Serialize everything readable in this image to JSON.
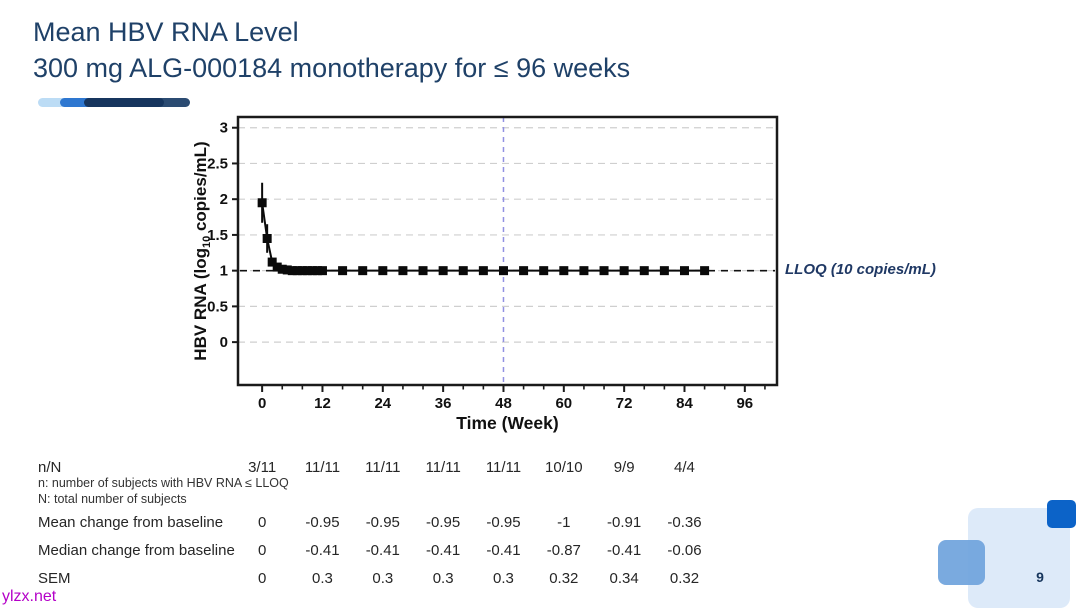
{
  "slide": {
    "title_line1": "Mean HBV RNA Level",
    "title_line2": "300 mg ALG-000184 monotherapy for ≤ 96 weeks",
    "page_number": "9"
  },
  "watermark": "ylzx.net",
  "colors": {
    "title_text": "#1f4168",
    "lloq_text": "#1f3864",
    "week48_line": "#9191e2",
    "gridline": "#cfcfcf",
    "series": "#0a0a0a",
    "accent_light": "#bcdcf5",
    "accent_mid": "#2e77d0",
    "accent_dark": "#16355e",
    "accent_tail": "#2b4b72",
    "decor_dark_square": "#0c63c8",
    "decor_mid_square": "#6fa3dc",
    "decor_light_square": "#ddeaf9"
  },
  "chart_data": {
    "type": "line",
    "title": "",
    "xlabel": "Time (Week)",
    "ylabel": "HBV RNA (log10 copies/mL)",
    "ylabel_parts": [
      "HBV  RNA  (log",
      "10",
      " copies/mL)"
    ],
    "xlim": [
      -4.8,
      102.4
    ],
    "ylim": [
      -0.6,
      3.15
    ],
    "x_major_ticks": [
      0,
      12,
      24,
      36,
      48,
      60,
      72,
      84,
      96
    ],
    "x_minor_tick_step": 4,
    "y_ticks": [
      0,
      0.5,
      1,
      1.5,
      2,
      2.5,
      3
    ],
    "grid": "horizontal dashed",
    "legend": "none",
    "reference_lines": [
      {
        "axis": "y",
        "value": 1,
        "label": "LLOQ (10 copies/mL)",
        "style": "dashed-black"
      },
      {
        "axis": "x",
        "value": 48,
        "label": "",
        "style": "dashed-blue"
      }
    ],
    "series": [
      {
        "name": "300 mg ALG-000184 monotherapy",
        "marker": "square",
        "color": "#0a0a0a",
        "x": [
          0,
          1,
          2,
          3,
          4,
          5,
          6,
          7,
          8,
          9,
          10,
          11,
          12,
          16,
          20,
          24,
          28,
          32,
          36,
          40,
          44,
          48,
          52,
          56,
          60,
          64,
          68,
          72,
          76,
          80,
          84,
          88
        ],
        "y": [
          1.95,
          1.45,
          1.12,
          1.05,
          1.02,
          1.01,
          1.0,
          1.0,
          1.0,
          1.0,
          1.0,
          1.0,
          1.0,
          1.0,
          1.0,
          1.0,
          1.0,
          1.0,
          1.0,
          1.0,
          1.0,
          1.0,
          1.0,
          1.0,
          1.0,
          1.0,
          1.0,
          1.0,
          1.0,
          1.0,
          1.0,
          1.0
        ],
        "yerr": [
          0.28,
          0.2,
          0.06,
          0,
          0,
          0,
          0,
          0,
          0,
          0,
          0,
          0,
          0,
          0,
          0,
          0,
          0,
          0,
          0,
          0,
          0,
          0,
          0,
          0,
          0,
          0,
          0,
          0,
          0,
          0,
          0,
          0
        ]
      }
    ]
  },
  "table": {
    "column_weeks": [
      0,
      12,
      24,
      36,
      48,
      60,
      72,
      84
    ],
    "rows": [
      {
        "label": "n/N",
        "values": [
          "3/11",
          "11/11",
          "11/11",
          "11/11",
          "11/11",
          "10/10",
          "9/9",
          "4/4"
        ]
      },
      {
        "label": "Mean change from baseline",
        "values": [
          "0",
          "-0.95",
          "-0.95",
          "-0.95",
          "-0.95",
          "-1",
          "-0.91",
          "-0.36"
        ]
      },
      {
        "label": "Median change from baseline",
        "values": [
          "0",
          "-0.41",
          "-0.41",
          "-0.41",
          "-0.41",
          "-0.87",
          "-0.41",
          "-0.06"
        ]
      },
      {
        "label": "SEM",
        "values": [
          "0",
          "0.3",
          "0.3",
          "0.3",
          "0.3",
          "0.32",
          "0.34",
          "0.32"
        ]
      }
    ],
    "footnotes": [
      "n: number of subjects with HBV RNA ≤ LLOQ",
      "N: total number of subjects"
    ]
  }
}
